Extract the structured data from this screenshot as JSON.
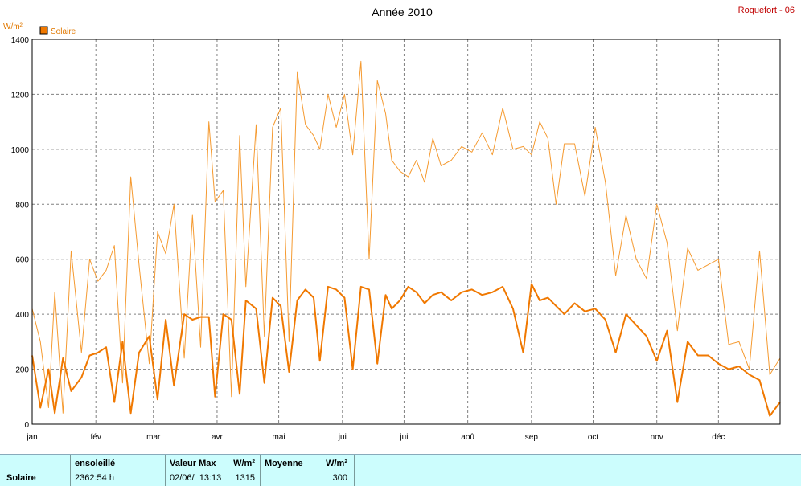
{
  "header": {
    "title": "Année 2010",
    "station": "Roquefort - 06",
    "unit": "W/m²",
    "legend_label": "Solaire"
  },
  "colors": {
    "series_thick": "#f07800",
    "series_thin": "#f59a30",
    "grid": "#808080",
    "panel_bg": "#ccfdfd",
    "station": "#c00000"
  },
  "chart_data": {
    "type": "line",
    "title": "Année 2010",
    "ylabel": "W/m²",
    "ylim": [
      0,
      1400
    ],
    "yticks": [
      0,
      200,
      400,
      600,
      800,
      1000,
      1200,
      1400
    ],
    "xlim_days": [
      1,
      365
    ],
    "month_labels": [
      "jan",
      "fév",
      "mar",
      "avr",
      "mai",
      "jui",
      "jui",
      "aoû",
      "sep",
      "oct",
      "nov",
      "déc"
    ],
    "grid": true,
    "legend": "top-left",
    "series": [
      {
        "name": "Solaire",
        "style": "daily maximum (thin)",
        "x": [
          1,
          5,
          9,
          12,
          16,
          20,
          25,
          29,
          33,
          37,
          41,
          45,
          49,
          53,
          58,
          62,
          66,
          70,
          75,
          79,
          83,
          87,
          90,
          94,
          98,
          102,
          105,
          110,
          114,
          118,
          122,
          126,
          130,
          134,
          138,
          141,
          145,
          149,
          153,
          157,
          161,
          165,
          169,
          173,
          176,
          180,
          184,
          188,
          192,
          196,
          200,
          205,
          210,
          215,
          220,
          225,
          230,
          235,
          240,
          244,
          248,
          252,
          256,
          260,
          265,
          270,
          275,
          280,
          285,
          290,
          295,
          300,
          305,
          310,
          315,
          320,
          325,
          330,
          335,
          340,
          345,
          350,
          355,
          360,
          365
        ],
        "values": [
          420,
          300,
          60,
          480,
          40,
          630,
          260,
          600,
          520,
          560,
          650,
          150,
          900,
          580,
          220,
          700,
          620,
          800,
          240,
          760,
          280,
          1100,
          810,
          850,
          100,
          1050,
          500,
          1090,
          320,
          1080,
          1150,
          300,
          1280,
          1090,
          1050,
          1000,
          1200,
          1080,
          1200,
          980,
          1320,
          600,
          1250,
          1130,
          960,
          920,
          900,
          960,
          880,
          1040,
          940,
          960,
          1010,
          990,
          1060,
          980,
          1150,
          1000,
          1010,
          980,
          1100,
          1040,
          800,
          1020,
          1020,
          830,
          1080,
          880,
          540,
          760,
          600,
          530,
          800,
          660,
          340,
          640,
          560,
          580,
          600,
          290,
          300,
          200,
          630,
          180,
          240
        ]
      },
      {
        "name": "Solaire",
        "style": "daily mean (thick)",
        "x": [
          1,
          5,
          9,
          12,
          16,
          20,
          25,
          29,
          33,
          37,
          41,
          45,
          49,
          53,
          58,
          62,
          66,
          70,
          75,
          79,
          83,
          87,
          90,
          94,
          98,
          102,
          105,
          110,
          114,
          118,
          122,
          126,
          130,
          134,
          138,
          141,
          145,
          149,
          153,
          157,
          161,
          165,
          169,
          173,
          176,
          180,
          184,
          188,
          192,
          196,
          200,
          205,
          210,
          215,
          220,
          225,
          230,
          235,
          240,
          244,
          248,
          252,
          256,
          260,
          265,
          270,
          275,
          280,
          285,
          290,
          295,
          300,
          305,
          310,
          315,
          320,
          325,
          330,
          335,
          340,
          345,
          350,
          355,
          360,
          365
        ],
        "values": [
          250,
          60,
          200,
          40,
          240,
          120,
          170,
          250,
          260,
          280,
          80,
          300,
          40,
          260,
          320,
          90,
          380,
          140,
          400,
          380,
          390,
          390,
          100,
          400,
          380,
          110,
          450,
          420,
          150,
          460,
          430,
          190,
          450,
          490,
          460,
          230,
          500,
          490,
          460,
          200,
          500,
          490,
          220,
          470,
          420,
          450,
          500,
          480,
          440,
          470,
          480,
          450,
          480,
          490,
          470,
          480,
          500,
          420,
          260,
          510,
          450,
          460,
          430,
          400,
          440,
          410,
          420,
          380,
          260,
          400,
          360,
          320,
          230,
          340,
          80,
          300,
          250,
          250,
          220,
          200,
          210,
          180,
          160,
          30,
          80
        ]
      }
    ]
  },
  "stats": {
    "row_label": "Solaire",
    "sunshine_header": "ensoleillé",
    "sunshine_value": "2362:54 h",
    "max_header": "Valeur Max",
    "max_unit": "W/m²",
    "max_datetime": "02/06/  13:13",
    "max_value": "1315",
    "avg_header": "Moyenne",
    "avg_unit": "W/m²",
    "avg_value": "300"
  }
}
